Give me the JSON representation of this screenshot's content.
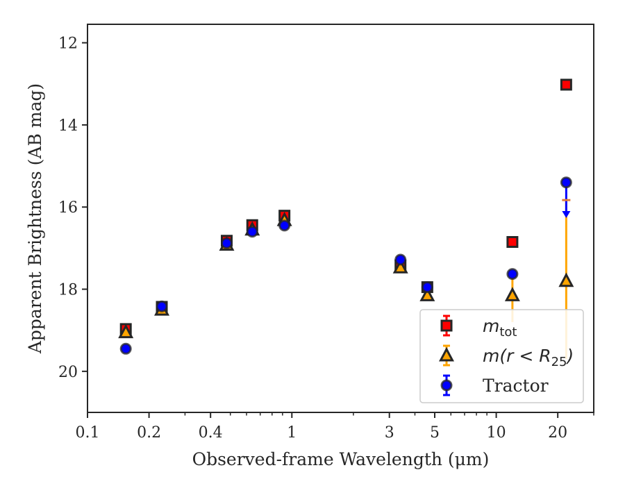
{
  "chart_data": {
    "type": "scatter",
    "title": "",
    "xlabel": "Observed-frame Wavelength (μm)",
    "ylabel": "Apparent Brightness (AB mag)",
    "xscale": "log",
    "xlim": [
      0.1,
      30
    ],
    "ylim": [
      21.0,
      11.55
    ],
    "y_inverted": true,
    "grid": false,
    "legend_position": "bottom-right",
    "xticks": [
      {
        "value": 0.1,
        "label": "0.1"
      },
      {
        "value": 0.2,
        "label": "0.2"
      },
      {
        "value": 0.4,
        "label": "0.4"
      },
      {
        "value": 1,
        "label": "1"
      },
      {
        "value": 3,
        "label": "3"
      },
      {
        "value": 5,
        "label": "5"
      },
      {
        "value": 10,
        "label": "10"
      },
      {
        "value": 20,
        "label": "20"
      }
    ],
    "xminor": [
      0.3,
      0.5,
      0.6,
      0.7,
      0.8,
      0.9,
      2,
      4,
      6,
      7,
      8,
      9,
      30
    ],
    "yticks": [
      {
        "value": 12,
        "label": "12"
      },
      {
        "value": 14,
        "label": "14"
      },
      {
        "value": 16,
        "label": "16"
      },
      {
        "value": 18,
        "label": "18"
      },
      {
        "value": 20,
        "label": "20"
      }
    ],
    "series": [
      {
        "name": "m_tot",
        "marker": "square",
        "color": "#ff0000",
        "edge": "#262626",
        "points": [
          {
            "x": 0.154,
            "y": 18.97
          },
          {
            "x": 0.231,
            "y": 18.43
          },
          {
            "x": 0.48,
            "y": 16.82
          },
          {
            "x": 0.64,
            "y": 16.44
          },
          {
            "x": 0.92,
            "y": 16.21
          },
          {
            "x": 3.4,
            "y": 17.42
          },
          {
            "x": 4.6,
            "y": 17.95
          },
          {
            "x": 12.0,
            "y": 16.85
          },
          {
            "x": 22.0,
            "y": 13.02
          }
        ]
      },
      {
        "name": "m(r<R25)",
        "marker": "triangle",
        "color": "#ffa500",
        "edge": "#262626",
        "points": [
          {
            "x": 0.154,
            "y": 19.05
          },
          {
            "x": 0.231,
            "y": 18.5
          },
          {
            "x": 0.48,
            "y": 16.92
          },
          {
            "x": 0.64,
            "y": 16.55
          },
          {
            "x": 0.92,
            "y": 16.32
          },
          {
            "x": 3.4,
            "y": 17.47
          },
          {
            "x": 4.6,
            "y": 18.15
          },
          {
            "x": 12.0,
            "y": 18.15,
            "yerr": [
              0.45,
              0.65
            ]
          },
          {
            "x": 22.0,
            "y": 17.8,
            "yerr": [
              1.95,
              1.9
            ]
          }
        ]
      },
      {
        "name": "Tractor",
        "marker": "circle",
        "color": "#0000ff",
        "edge": "#262626",
        "points": [
          {
            "x": 0.154,
            "y": 19.45
          },
          {
            "x": 0.231,
            "y": 18.42
          },
          {
            "x": 0.48,
            "y": 16.88
          },
          {
            "x": 0.64,
            "y": 16.6
          },
          {
            "x": 0.92,
            "y": 16.45
          },
          {
            "x": 3.4,
            "y": 17.28
          },
          {
            "x": 4.6,
            "y": 17.95
          },
          {
            "x": 12.0,
            "y": 17.63
          },
          {
            "x": 22.0,
            "y": 15.4,
            "upper_limit": 16.25
          }
        ]
      }
    ],
    "legend": [
      {
        "series": "m_tot",
        "text": "m",
        "subscript": "tot"
      },
      {
        "series": "m(r<R25)",
        "text": "m(r < R",
        "subscript": "25",
        "suffix": ")"
      },
      {
        "series": "Tractor",
        "text": "Tractor"
      }
    ]
  }
}
